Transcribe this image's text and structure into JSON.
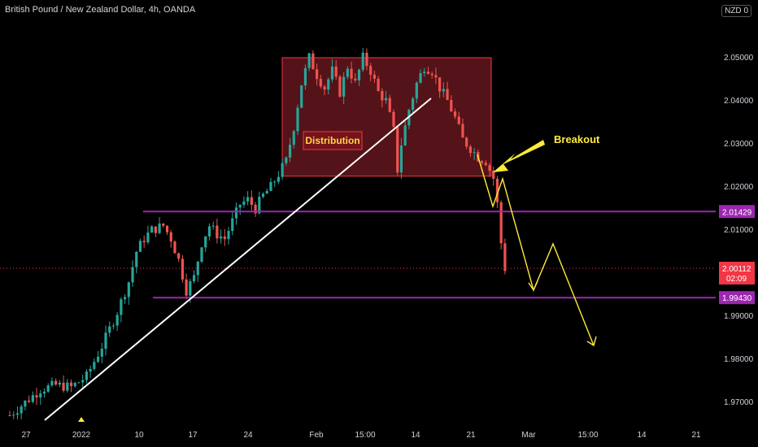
{
  "header": {
    "title": "British Pound / New Zealand Dollar, 4h, OANDA",
    "currency": "NZD",
    "currency_flag": "0"
  },
  "chart_data": {
    "type": "candlestick",
    "ylim": [
      1.965,
      2.057
    ],
    "y_ticks": [
      "2.05000",
      "2.04000",
      "2.03000",
      "2.02000",
      "2.01000",
      "2.00000",
      "1.99000",
      "1.98000",
      "1.97000"
    ],
    "y_tick_values": [
      2.05,
      2.04,
      2.03,
      2.02,
      2.01,
      2.0,
      1.99,
      1.98,
      1.97
    ],
    "x_ticks": [
      "27",
      "2022",
      "10",
      "17",
      "24",
      "Feb",
      "15:00",
      "14",
      "21",
      "Mar",
      "15:00",
      "14",
      "21"
    ],
    "price_path": [
      [
        0,
        1.967
      ],
      [
        4,
        1.97
      ],
      [
        8,
        1.973
      ],
      [
        12,
        1.974
      ],
      [
        16,
        1.9735
      ],
      [
        20,
        1.976
      ],
      [
        24,
        1.983
      ],
      [
        28,
        1.991
      ],
      [
        31,
        1.998
      ],
      [
        33,
        2.005
      ],
      [
        35,
        2.008
      ],
      [
        37,
        2.01
      ],
      [
        40,
        2.011
      ],
      [
        42,
        2.008
      ],
      [
        44,
        2.003
      ],
      [
        46,
        1.996
      ],
      [
        48,
        1.999
      ],
      [
        50,
        2.007
      ],
      [
        52,
        2.011
      ],
      [
        54,
        2.009
      ],
      [
        56,
        2.008
      ],
      [
        58,
        2.012
      ],
      [
        60,
        2.016
      ],
      [
        62,
        2.017
      ],
      [
        64,
        2.015
      ],
      [
        66,
        2.018
      ],
      [
        68,
        2.02
      ],
      [
        70,
        2.023
      ],
      [
        72,
        2.026
      ],
      [
        74,
        2.034
      ],
      [
        76,
        2.044
      ],
      [
        78,
        2.05
      ],
      [
        80,
        2.046
      ],
      [
        82,
        2.043
      ],
      [
        84,
        2.047
      ],
      [
        86,
        2.042
      ],
      [
        88,
        2.048
      ],
      [
        90,
        2.044
      ],
      [
        92,
        2.05
      ],
      [
        94,
        2.047
      ],
      [
        96,
        2.042
      ],
      [
        98,
        2.04
      ],
      [
        100,
        2.033
      ],
      [
        101,
        2.024
      ],
      [
        102,
        2.03
      ],
      [
        104,
        2.038
      ],
      [
        106,
        2.044
      ],
      [
        108,
        2.048
      ],
      [
        110,
        2.047
      ],
      [
        112,
        2.043
      ],
      [
        114,
        2.04
      ],
      [
        116,
        2.036
      ],
      [
        118,
        2.031
      ],
      [
        120,
        2.029
      ],
      [
        122,
        2.027
      ],
      [
        124,
        2.026
      ],
      [
        126,
        2.022
      ],
      [
        127,
        2.016
      ],
      [
        128,
        2.007
      ],
      [
        129,
        2.0011
      ]
    ],
    "current_price": {
      "label": "2.00112",
      "value": 2.00112,
      "countdown": "02:09",
      "color": "#f23645"
    },
    "horizontal_levels": [
      {
        "label": "2.01429",
        "value": 2.01429,
        "color": "#9c27b0"
      },
      {
        "label": "1.99430",
        "value": 1.9943,
        "color": "#9c27b0"
      }
    ],
    "zone": {
      "label": "Distribution",
      "top": 2.05,
      "bottom": 2.0225,
      "color": "#f23645"
    },
    "trendline_color": "#ffffff",
    "annotation": {
      "label": "Breakout",
      "color": "#ffeb3b"
    },
    "projection_color": "#ffeb3b",
    "up_color": "#26a69a",
    "down_color": "#ef5350"
  }
}
